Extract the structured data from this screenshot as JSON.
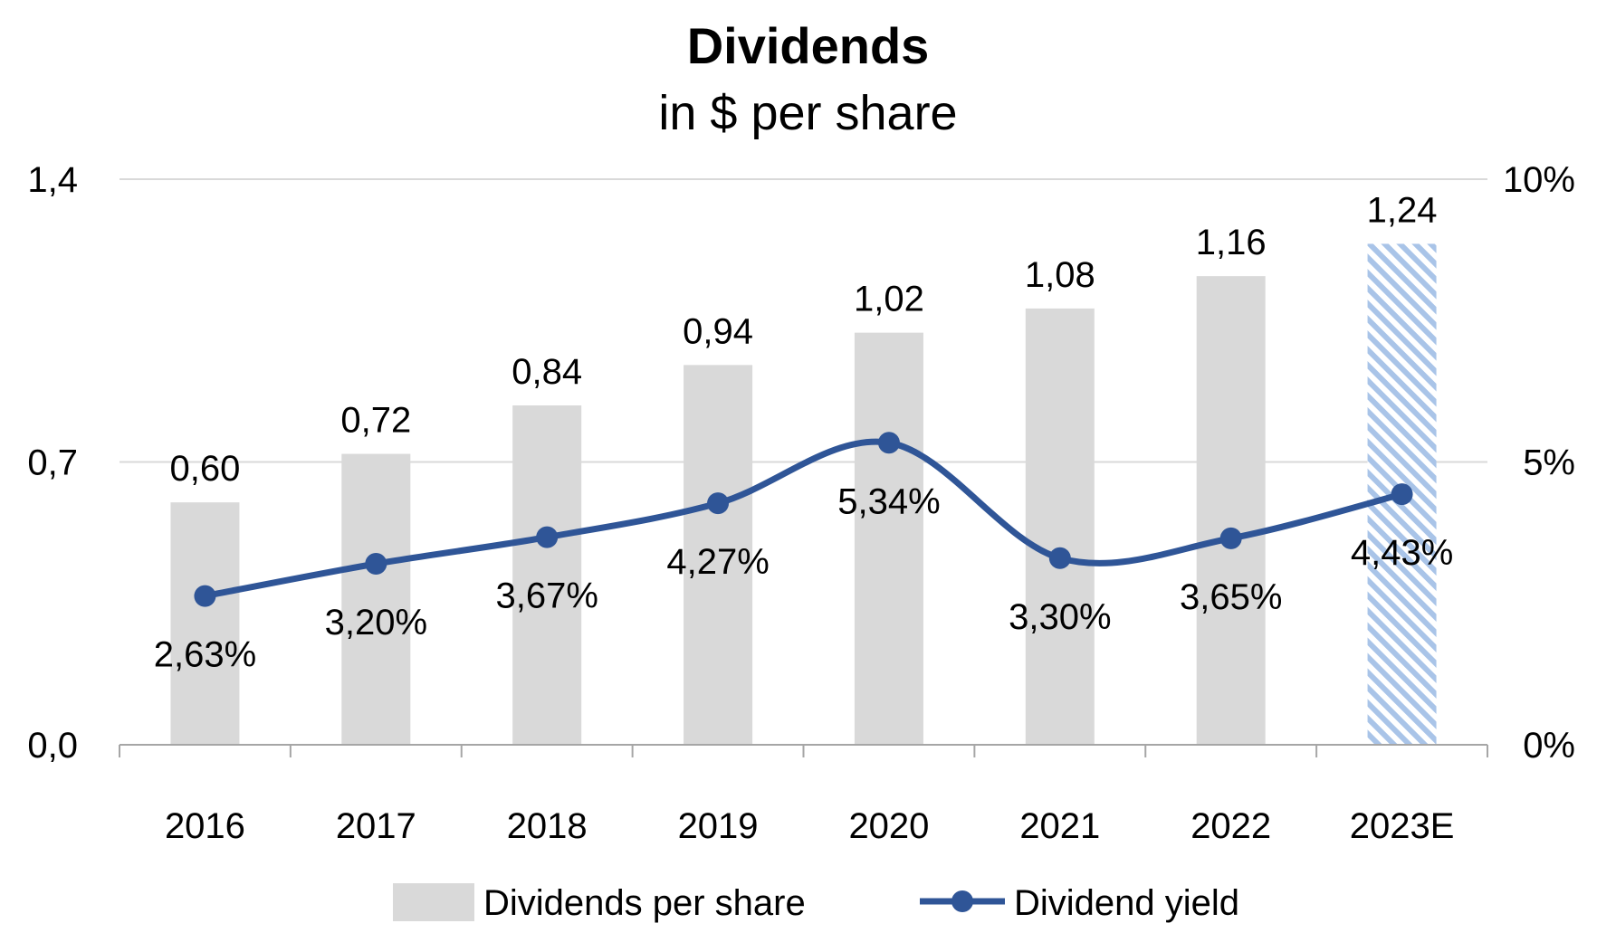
{
  "chart_data": {
    "type": "bar",
    "title": "Dividends",
    "subtitle": "in $ per share",
    "categories": [
      "2016",
      "2017",
      "2018",
      "2019",
      "2020",
      "2021",
      "2022",
      "2023E"
    ],
    "series": [
      {
        "name": "Dividends per share",
        "type": "bar",
        "axis": "left",
        "values": [
          0.6,
          0.72,
          0.84,
          0.94,
          1.02,
          1.08,
          1.16,
          1.24
        ],
        "labels": [
          "0,60",
          "0,72",
          "0,84",
          "0,94",
          "1,02",
          "1,08",
          "1,16",
          "1,24"
        ],
        "color": "#d9d9d9",
        "estimate_color": "#a9c4e8",
        "estimate_index": 7
      },
      {
        "name": "Dividend yield",
        "type": "line",
        "axis": "right",
        "smooth": true,
        "values": [
          2.63,
          3.2,
          3.67,
          4.27,
          5.34,
          3.3,
          3.65,
          4.43
        ],
        "labels": [
          "2,63%",
          "3,20%",
          "3,67%",
          "4,27%",
          "5,34%",
          "3,30%",
          "3,65%",
          "4,43%"
        ],
        "label_position": [
          "below",
          "below",
          "below",
          "below",
          "below",
          "below",
          "below",
          "below"
        ],
        "color": "#2f5597"
      }
    ],
    "y_left": {
      "ylim": [
        0,
        1.4
      ],
      "ticks": [
        0,
        0.7,
        1.4
      ],
      "tick_labels": [
        "0,0",
        "0,7",
        "1,4"
      ]
    },
    "y_right": {
      "ylim": [
        0,
        10
      ],
      "ticks": [
        0,
        5,
        10
      ],
      "tick_labels": [
        "0%",
        "5%",
        "10%"
      ]
    },
    "grid": true,
    "legend_position": "bottom"
  }
}
